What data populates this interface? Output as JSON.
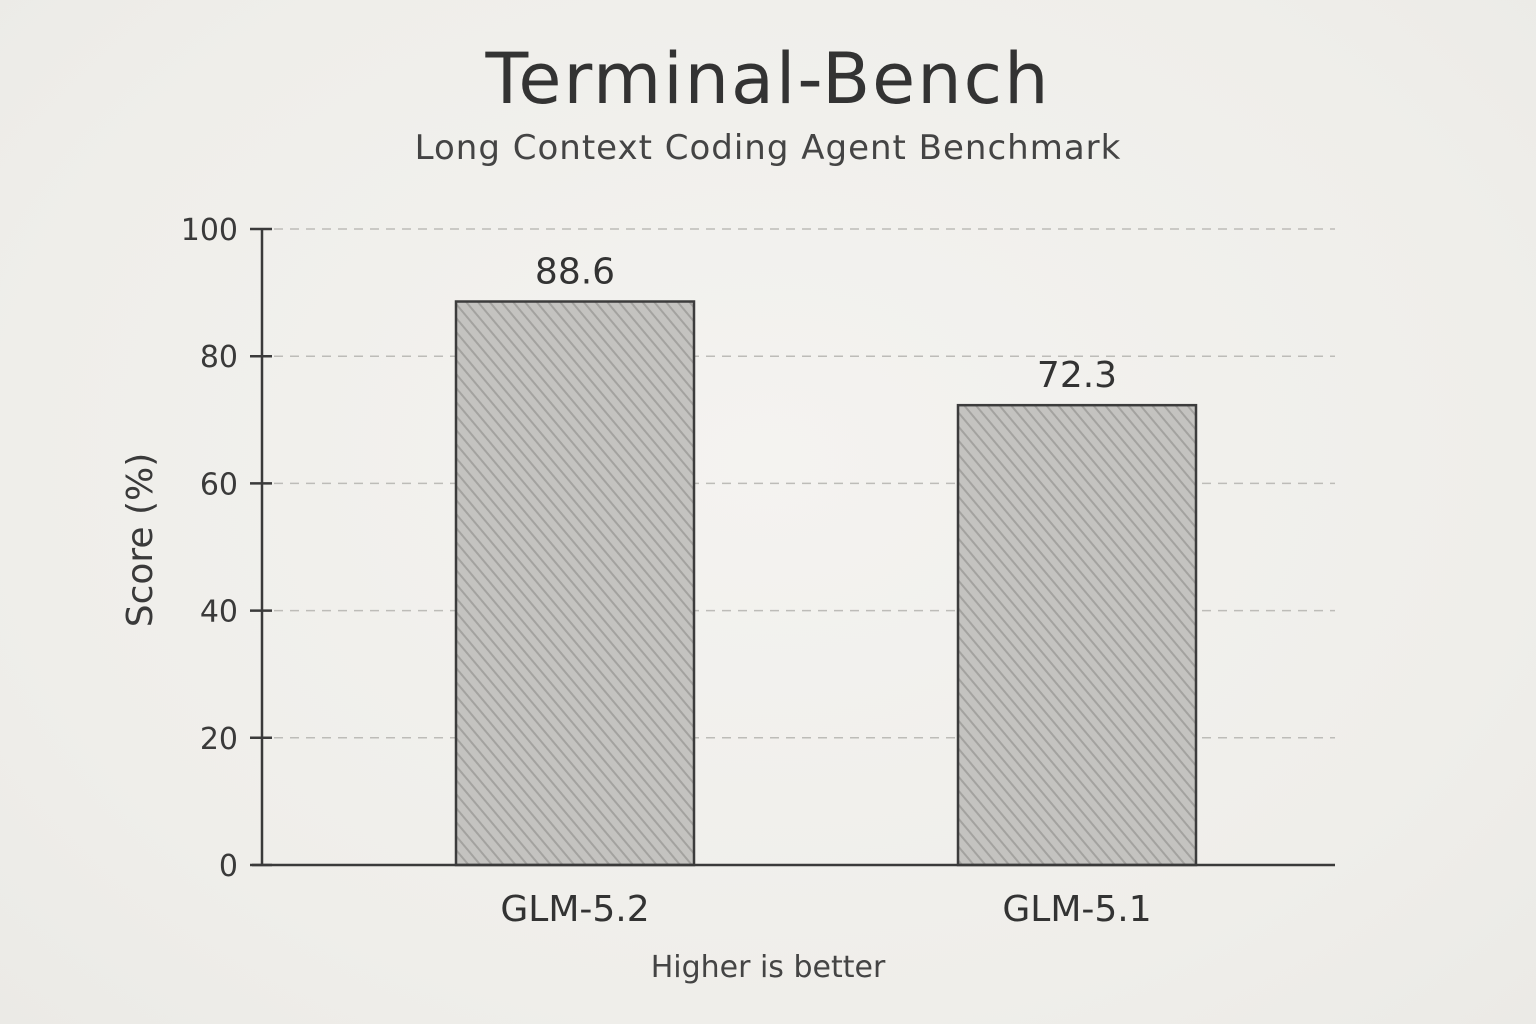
{
  "chart_data": {
    "type": "bar",
    "title": "Terminal-Bench",
    "subtitle": "Long Context Coding Agent Benchmark",
    "categories": [
      "GLM-5.2",
      "GLM-5.1"
    ],
    "values": [
      88.6,
      72.3
    ],
    "value_labels": [
      "88.6",
      "72.3"
    ],
    "xlabel": "",
    "ylabel": "Score (%)",
    "ylim": [
      0,
      100
    ],
    "yticks": [
      0,
      20,
      40,
      60,
      80,
      100
    ],
    "grid": "horizontal dashed",
    "legend": "none",
    "note": "Higher is better",
    "colors": {
      "bar_fill": "#b9b8b5",
      "bar_stroke": "#3c3c3c",
      "axis": "#3a3a3a",
      "grid": "#bdbcb8"
    }
  }
}
